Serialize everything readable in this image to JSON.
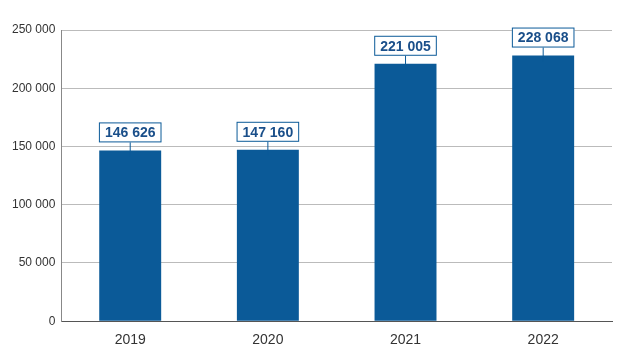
{
  "chart_data": {
    "type": "bar",
    "categories": [
      "2019",
      "2020",
      "2021",
      "2022"
    ],
    "values": [
      146626,
      147160,
      221005,
      228068
    ],
    "value_labels": [
      "146 626",
      "147 160",
      "221 005",
      "228 068"
    ],
    "color": "#0b5a98",
    "ylim": [
      0,
      250000
    ],
    "yticks": [
      0,
      {
        "value": 50000,
        "label": "50 000"
      },
      {
        "value": 100000,
        "label": "100 000"
      },
      {
        "value": 150000,
        "label": "150 000"
      },
      {
        "value": 200000,
        "label": "200 000"
      },
      {
        "value": 250000,
        "label": "250 000"
      }
    ],
    "grid": true,
    "data_labels": true
  }
}
